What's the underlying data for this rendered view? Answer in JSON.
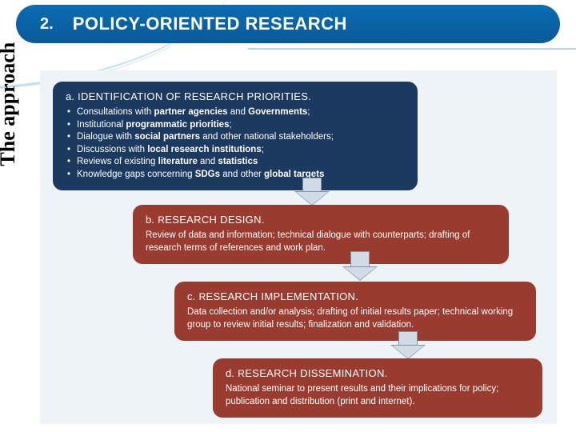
{
  "header": {
    "number": "2.",
    "title": "POLICY-ORIENTED RESEARCH"
  },
  "side_label": "The approach",
  "colors": {
    "header_bg": "#0b6bb3",
    "step_a_bg": "#1c3a5f",
    "step_other_bg": "#9a3b2f",
    "diagram_bg": "#eef3f8",
    "arrow_fill": "#d0dbe6",
    "arrow_border": "#7a94af",
    "text": "#ffffff"
  },
  "steps": {
    "a": {
      "letter": "a.",
      "title": "IDENTIFICATION OF RESEARCH PRIORITIES.",
      "bullets_html": [
        "Consultations with <b>partner agencies</b> and <b>Governments</b>;",
        "Institutional <b>programmatic priorities</b>;",
        "Dialogue with <b>social partners</b> and other national stakeholders;",
        "Discussions with <b>local research institutions</b>;",
        "Reviews of existing <b>literature</b> and <b>statistics</b>",
        "Knowledge gaps concerning <b>SDGs</b> and other <b>global targets</b>"
      ]
    },
    "b": {
      "letter": "b.",
      "title": "RESEARCH DESIGN.",
      "body": "Review of data and information; technical dialogue with counterparts; drafting of research terms of references and work plan."
    },
    "c": {
      "letter": "c.",
      "title": "RESEARCH IMPLEMENTATION.",
      "body": "Data collection and/or analysis; drafting of initial results paper; technical working group to review initial results; finalization and validation."
    },
    "d": {
      "letter": "d.",
      "title": "RESEARCH DISSEMINATION.",
      "body": "National seminar to present results and their implications for policy; publication and distribution (print and internet)."
    }
  }
}
